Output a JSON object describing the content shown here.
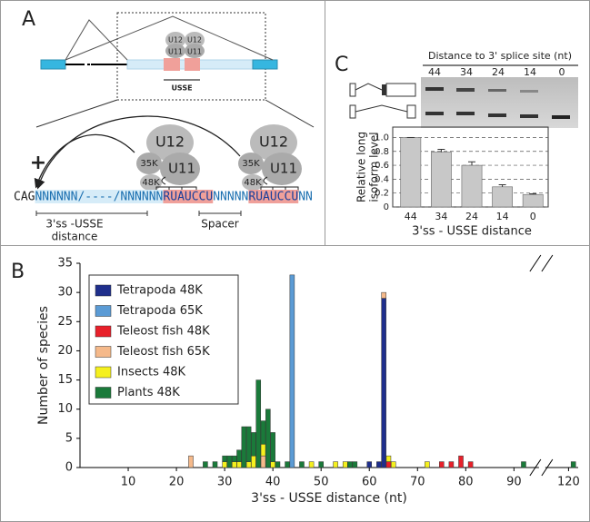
{
  "panel_labels": [
    "A",
    "B",
    "C"
  ],
  "diagram": {
    "snrnp_small": [
      "U12",
      "U11",
      "U12",
      "U11"
    ],
    "usse": "USSE",
    "plus": "+",
    "complex1": {
      "u12": "U12",
      "k35": "35K",
      "u11": "U11",
      "k48": "48K"
    },
    "complex2": {
      "u12": "U12",
      "k35": "35K",
      "u11": "U11",
      "k48": "48K"
    },
    "sequence": [
      "CAG",
      "NNNNNN/----/NNNNNN",
      "RUAUCCU",
      "NNNNN",
      "RUAUCCU",
      "NN"
    ],
    "distance_label": [
      "3'ss -USSE",
      "distance"
    ],
    "spacer": "Spacer"
  },
  "gel": {
    "title": "Distance to 3' splice site (nt)",
    "lanes": [
      "44",
      "34",
      "24",
      "14",
      "0"
    ]
  },
  "chart_data": [
    {
      "type": "stacked_bar",
      "xlabel": "3'ss - USSE distance (nt)",
      "ylabel": "Number of species",
      "x": [
        23,
        26,
        28,
        30,
        31,
        32,
        33,
        34,
        35,
        36,
        37,
        38,
        39,
        40,
        41,
        43,
        44,
        46,
        48,
        50,
        53,
        55,
        56,
        57,
        60,
        62,
        63,
        64,
        65,
        72,
        75,
        77,
        79,
        81,
        92,
        121
      ],
      "series": [
        {
          "name": "Tetrapoda 48K",
          "color": "#1f2f8c",
          "values": [
            0,
            0,
            0,
            0,
            0,
            0,
            0,
            0,
            0,
            0,
            0,
            0,
            0,
            0,
            0,
            0,
            0,
            0,
            0,
            0,
            0,
            0,
            0,
            0,
            1,
            1,
            29,
            0,
            0,
            0,
            0,
            0,
            0,
            0,
            0,
            0
          ]
        },
        {
          "name": "Tetrapoda 65K",
          "color": "#5b9bd5",
          "values": [
            0,
            0,
            0,
            0,
            0,
            0,
            0,
            0,
            0,
            0,
            0,
            0,
            0,
            0,
            0,
            0,
            33,
            0,
            0,
            0,
            0,
            0,
            0,
            0,
            0,
            0,
            0,
            0,
            0,
            0,
            0,
            0,
            0,
            0,
            0,
            0
          ]
        },
        {
          "name": "Teleost fish 48K",
          "color": "#e8202a",
          "values": [
            0,
            0,
            0,
            0,
            0,
            0,
            0,
            0,
            0,
            0,
            0,
            0,
            0,
            0,
            0,
            0,
            0,
            0,
            0,
            0,
            0,
            0,
            0,
            0,
            0,
            0,
            0,
            1,
            0,
            0,
            1,
            1,
            2,
            1,
            0,
            0
          ]
        },
        {
          "name": "Teleost fish 65K",
          "color": "#f5b98a",
          "values": [
            2,
            0,
            0,
            0,
            0,
            0,
            0,
            0,
            0,
            0,
            0,
            2,
            0,
            0,
            0,
            0,
            0,
            0,
            0,
            0,
            0,
            0,
            0,
            0,
            0,
            0,
            1,
            0,
            0,
            0,
            0,
            0,
            0,
            0,
            0,
            0
          ]
        },
        {
          "name": "Insects 48K",
          "color": "#f5f01e",
          "values": [
            0,
            0,
            0,
            1,
            0,
            1,
            1,
            0,
            1,
            2,
            0,
            2,
            0,
            1,
            0,
            0,
            0,
            0,
            1,
            0,
            1,
            1,
            0,
            0,
            0,
            0,
            0,
            1,
            1,
            1,
            0,
            0,
            0,
            0,
            0,
            0
          ]
        },
        {
          "name": "Plants 48K",
          "color": "#1a7a3a",
          "values": [
            0,
            1,
            1,
            1,
            2,
            1,
            2,
            7,
            6,
            4,
            15,
            4,
            10,
            5,
            1,
            1,
            0,
            1,
            0,
            1,
            0,
            0,
            1,
            1,
            0,
            0,
            0,
            0,
            0,
            0,
            0,
            0,
            0,
            0,
            1,
            1
          ]
        }
      ],
      "xlim": [
        0,
        122
      ],
      "xbreak": [
        95,
        115
      ],
      "xticks": [
        10,
        20,
        30,
        40,
        50,
        60,
        70,
        80,
        90,
        120
      ],
      "ylim": [
        0,
        35
      ],
      "yticks": [
        0,
        5,
        10,
        15,
        20,
        25,
        30,
        35
      ],
      "legend": "upper left",
      "grid": false
    },
    {
      "type": "bar",
      "xlabel": "3'ss - USSE distance",
      "ylabel": [
        "Relative long",
        "isoform level"
      ],
      "categories": [
        "44",
        "34",
        "24",
        "14",
        "0"
      ],
      "values": [
        1.0,
        0.79,
        0.6,
        0.29,
        0.18
      ],
      "errors": [
        0,
        0.04,
        0.05,
        0.03,
        0.01
      ],
      "color": "#c8c8c8",
      "ylim": [
        0,
        1.15
      ],
      "yticks": [
        0,
        0.2,
        0.4,
        0.6,
        0.8,
        {
          "value": 1,
          "label": "1.0"
        }
      ],
      "grid": true
    }
  ]
}
